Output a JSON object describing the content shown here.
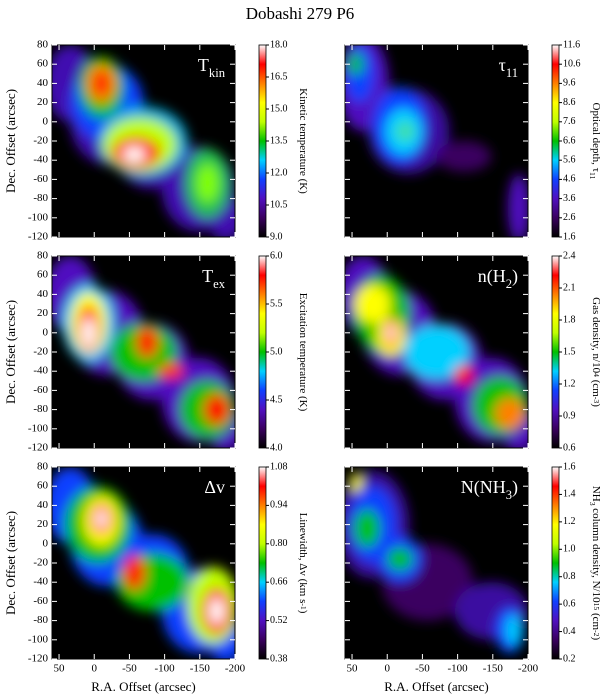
{
  "title": "Dobashi 279 P6",
  "colormap": [
    "#000000",
    "#3a0060",
    "#5010c0",
    "#1040ff",
    "#00d0ff",
    "#00c000",
    "#c0ff00",
    "#ffff00",
    "#ff8000",
    "#ff0000",
    "#ffffff"
  ],
  "chart_data": [
    {
      "type": "heatmap",
      "panel_label": [
        {
          "text": "T"
        },
        {
          "text": "kin",
          "shift": "sub"
        }
      ],
      "colorbar_label": [
        {
          "text": "Kinetic temperature (K)"
        }
      ],
      "clim": [
        9,
        18
      ],
      "cticks": [
        {
          "value": 9,
          "label": "9.0"
        },
        10.5,
        {
          "value": 12,
          "label": "12.0"
        },
        13.5,
        {
          "value": 15,
          "label": "15.0"
        },
        16.5,
        {
          "value": 18,
          "label": "18.0"
        }
      ],
      "xlim": [
        60,
        -200
      ],
      "xticks": [
        50,
        0,
        -50,
        -100,
        -150,
        -200
      ],
      "ylim": [
        -120,
        80
      ],
      "yticks": [
        -120,
        -100,
        -80,
        -60,
        -40,
        -20,
        0,
        20,
        40,
        60,
        80
      ],
      "ylabel": "Dec. Offset (arcsec)"
    },
    {
      "type": "heatmap",
      "panel_label": [
        {
          "text": "τ"
        },
        {
          "text": "11",
          "shift": "sub"
        }
      ],
      "colorbar_label": [
        {
          "text": "Optical depth, τ"
        },
        {
          "text": "11",
          "shift": "sub"
        }
      ],
      "clim": [
        1.6,
        11.6
      ],
      "cticks": [
        1.6,
        2.6,
        3.6,
        4.6,
        5.6,
        6.6,
        7.6,
        8.6,
        9.6,
        10.6,
        11.6
      ],
      "xlim": [
        60,
        -200
      ],
      "xticks": [
        50,
        0,
        -50,
        -100,
        -150,
        -200
      ],
      "ylim": [
        -120,
        80
      ],
      "yticks": [
        -120,
        -100,
        -80,
        -60,
        -40,
        -20,
        0,
        20,
        40,
        60,
        80
      ]
    },
    {
      "type": "heatmap",
      "panel_label": [
        {
          "text": "T"
        },
        {
          "text": "ex",
          "shift": "sub"
        }
      ],
      "colorbar_label": [
        {
          "text": "Excitation temperature (K)"
        }
      ],
      "clim": [
        4,
        6
      ],
      "cticks": [
        {
          "value": 4,
          "label": "4.0"
        },
        4.5,
        {
          "value": 5,
          "label": "5.0"
        },
        5.5,
        {
          "value": 6,
          "label": "6.0"
        }
      ],
      "xlim": [
        60,
        -200
      ],
      "xticks": [
        50,
        0,
        -50,
        -100,
        -150,
        -200
      ],
      "ylim": [
        -120,
        80
      ],
      "yticks": [
        -120,
        -100,
        -80,
        -60,
        -40,
        -20,
        0,
        20,
        40,
        60,
        80
      ],
      "ylabel": "Dec. Offset (arcsec)"
    },
    {
      "type": "heatmap",
      "panel_label": [
        {
          "text": "n(H"
        },
        {
          "text": "2",
          "shift": "sub"
        },
        {
          "text": ")"
        }
      ],
      "colorbar_label": [
        {
          "text": "Gas density, n/10"
        },
        {
          "text": "4",
          "shift": "sup"
        },
        {
          "text": " (cm"
        },
        {
          "text": "-3",
          "shift": "sup"
        },
        {
          "text": ")"
        }
      ],
      "clim": [
        0.6,
        2.4
      ],
      "cticks": [
        0.6,
        0.9,
        1.2,
        1.5,
        1.8,
        2.1,
        2.4
      ],
      "xlim": [
        60,
        -200
      ],
      "xticks": [
        50,
        0,
        -50,
        -100,
        -150,
        -200
      ],
      "ylim": [
        -120,
        80
      ],
      "yticks": [
        -120,
        -100,
        -80,
        -60,
        -40,
        -20,
        0,
        20,
        40,
        60,
        80
      ]
    },
    {
      "type": "heatmap",
      "panel_label": [
        {
          "text": "Δv"
        }
      ],
      "colorbar_label": [
        {
          "text": "Linewidth, Δv (km s"
        },
        {
          "text": "-1",
          "shift": "sup"
        },
        {
          "text": ")"
        }
      ],
      "clim": [
        0.38,
        1.08
      ],
      "cticks": [
        0.38,
        0.52,
        0.66,
        {
          "value": 0.8,
          "label": "0.80"
        },
        0.94,
        1.08
      ],
      "xlim": [
        60,
        -200
      ],
      "xticks": [
        50,
        0,
        -50,
        -100,
        -150,
        -200
      ],
      "ylim": [
        -120,
        80
      ],
      "yticks": [
        -120,
        -100,
        -80,
        -60,
        -40,
        -20,
        0,
        20,
        40,
        60,
        80
      ],
      "ylabel": "Dec. Offset (arcsec)",
      "xlabel": "R.A. Offset (arcsec)"
    },
    {
      "type": "heatmap",
      "panel_label": [
        {
          "text": "N(NH"
        },
        {
          "text": "3",
          "shift": "sub"
        },
        {
          "text": ")"
        }
      ],
      "colorbar_label": [
        {
          "text": "NH"
        },
        {
          "text": "3",
          "shift": "sub"
        },
        {
          "text": " column density, N/10"
        },
        {
          "text": "15",
          "shift": "sup"
        },
        {
          "text": " (cm"
        },
        {
          "text": "-2",
          "shift": "sup"
        },
        {
          "text": ")"
        }
      ],
      "clim": [
        0.2,
        1.6
      ],
      "cticks": [
        0.2,
        0.4,
        0.6,
        0.8,
        {
          "value": 1,
          "label": "1.0"
        },
        1.2,
        1.4,
        1.6
      ],
      "xlim": [
        60,
        -200
      ],
      "xticks": [
        50,
        0,
        -50,
        -100,
        -150,
        -200
      ],
      "ylim": [
        -120,
        80
      ],
      "yticks": [
        -120,
        -100,
        -80,
        -60,
        -40,
        -20,
        0,
        20,
        40,
        60,
        80
      ],
      "xlabel": "R.A. Offset (arcsec)"
    }
  ]
}
